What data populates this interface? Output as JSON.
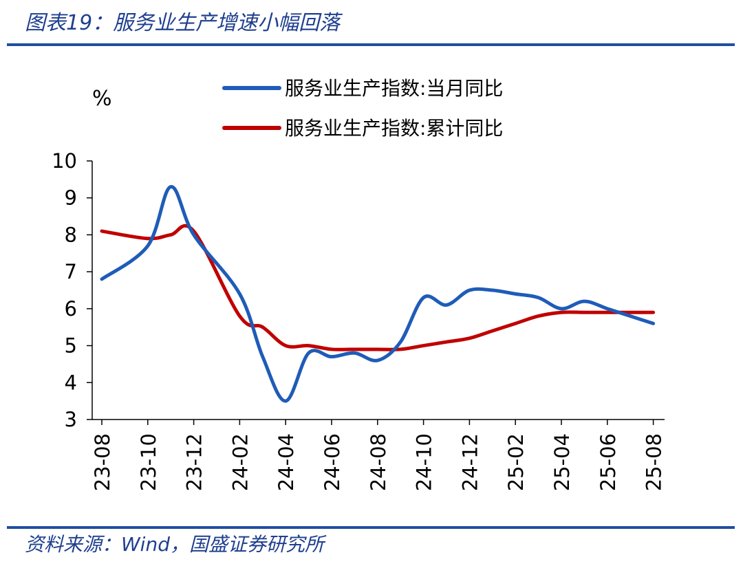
{
  "header": {
    "title": "图表19：服务业生产增速小幅回落"
  },
  "footer": {
    "source": "资料来源：Wind，国盛证券研究所"
  },
  "colors": {
    "accent": "#1f4ea0",
    "series_monthly": "#1f5cb8",
    "series_cumulative": "#c00000"
  },
  "chart_data": {
    "type": "line",
    "unit_label": "%",
    "ylim": [
      3,
      10
    ],
    "y_ticks": [
      3,
      4,
      5,
      6,
      7,
      8,
      9,
      10
    ],
    "grid": false,
    "legend_position": "top",
    "x": [
      "23-08",
      "23-09",
      "23-10",
      "23-11",
      "23-12",
      "24-01",
      "24-02",
      "24-03",
      "24-04",
      "24-05",
      "24-06",
      "24-07",
      "24-08",
      "24-09",
      "24-10",
      "24-11",
      "24-12",
      "25-01",
      "25-02",
      "25-03",
      "25-04",
      "25-05",
      "25-06",
      "25-07",
      "25-08"
    ],
    "x_tick_labels": [
      "23-08",
      "23-10",
      "23-12",
      "24-02",
      "24-04",
      "24-06",
      "24-08",
      "24-10",
      "24-12",
      "25-02",
      "25-04",
      "25-06",
      "25-08"
    ],
    "series": [
      {
        "name": "服务业生产指数:当月同比",
        "color": "#1f5cb8",
        "values": [
          6.8,
          7.7,
          9.3,
          8.0,
          6.4,
          4.7,
          3.5,
          4.8,
          4.7,
          4.8,
          4.6,
          5.1,
          6.3,
          6.1,
          6.5,
          6.5,
          6.4,
          6.3,
          6.0,
          6.2,
          6.0,
          5.8,
          5.6
        ],
        "x": [
          "23-08",
          "23-10",
          "23-11",
          "23-12",
          "24-02",
          "24-03",
          "24-04",
          "24-05",
          "24-06",
          "24-07",
          "24-08",
          "24-09",
          "24-10",
          "24-11",
          "24-12",
          "25-01",
          "25-02",
          "25-03",
          "25-04",
          "25-05",
          "25-06",
          "25-07",
          "25-08"
        ]
      },
      {
        "name": "服务业生产指数:累计同比",
        "color": "#c00000",
        "values": [
          8.1,
          7.9,
          8.0,
          8.1,
          5.8,
          5.5,
          5.0,
          5.0,
          4.9,
          4.9,
          4.9,
          4.9,
          5.0,
          5.1,
          5.2,
          5.4,
          5.6,
          5.8,
          5.9,
          5.9,
          5.9,
          5.9,
          5.9
        ],
        "x": [
          "23-08",
          "23-10",
          "23-11",
          "23-12",
          "24-02",
          "24-03",
          "24-04",
          "24-05",
          "24-06",
          "24-07",
          "24-08",
          "24-09",
          "24-10",
          "24-11",
          "24-12",
          "25-01",
          "25-02",
          "25-03",
          "25-04",
          "25-05",
          "25-06",
          "25-07",
          "25-08"
        ]
      }
    ]
  }
}
